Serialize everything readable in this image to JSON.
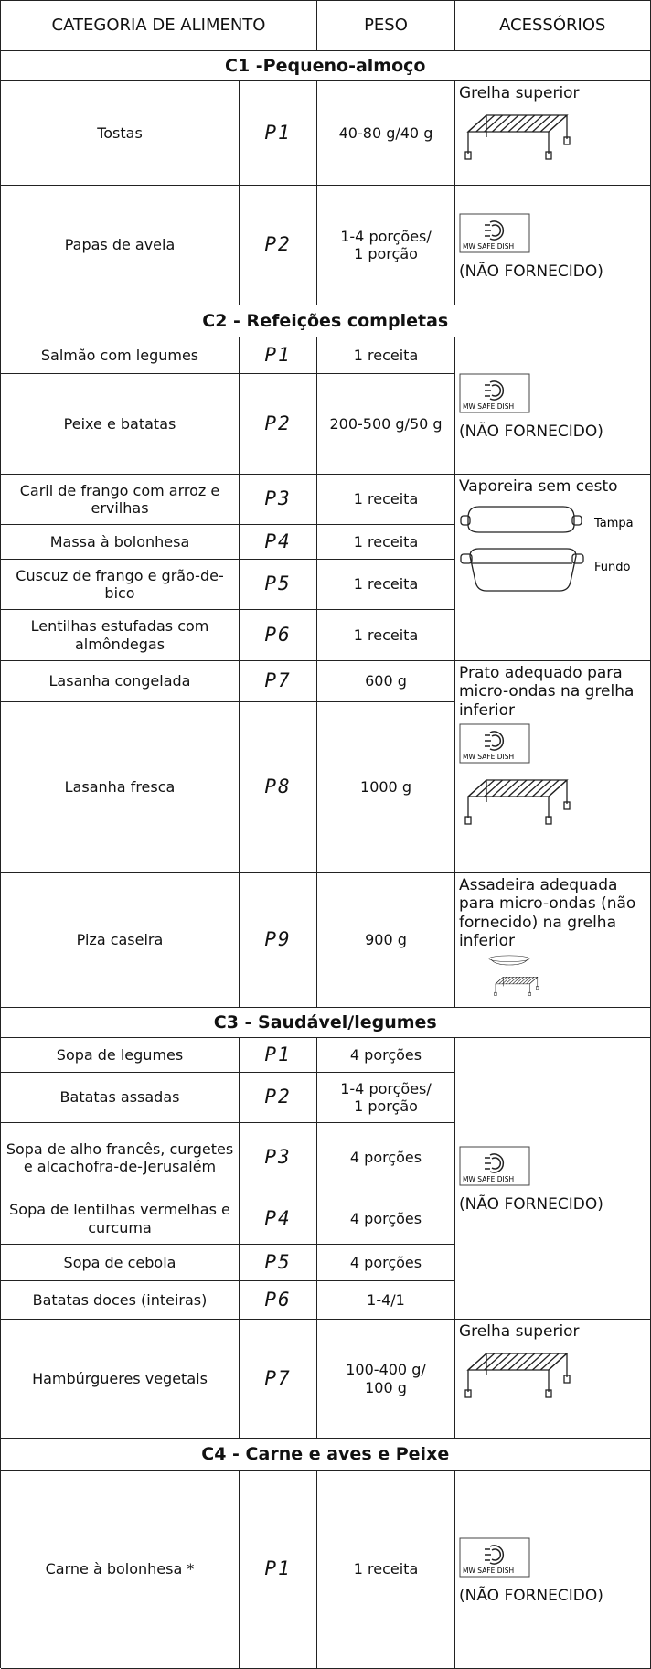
{
  "header": [
    "CATEGORIA DE ALIMENTO",
    "PESO",
    "ACESSÓRIOS"
  ],
  "sections": [
    {
      "title": "C1 -Pequeno-almoço",
      "rows": [
        {
          "food": "Tostas",
          "program": "P1",
          "weight": "40-80 g/40 g"
        },
        {
          "food": "Papas de aveia",
          "program": "P2",
          "weight": "1-4 porções/\n1 porção"
        }
      ],
      "accessories": [
        {
          "text": "Grelha superior"
        },
        {
          "icon_label": "MW SAFE DISH",
          "note": "(NÃO FORNECIDO)"
        }
      ]
    },
    {
      "title": "C2 - Refeições completas",
      "rows": [
        {
          "food": "Salmão com legumes",
          "program": "P1",
          "weight": "1 receita"
        },
        {
          "food": "Peixe e batatas",
          "program": "P2",
          "weight": "200-500 g/50 g"
        },
        {
          "food": "Caril de frango com arroz e ervilhas",
          "program": "P3",
          "weight": "1 receita"
        },
        {
          "food": "Massa à bolonhesa",
          "program": "P4",
          "weight": "1 receita"
        },
        {
          "food": "Cuscuz de frango e grão-de-bico",
          "program": "P5",
          "weight": "1 receita"
        },
        {
          "food": "Lentilhas estufadas com almôndegas",
          "program": "P6",
          "weight": "1 receita"
        },
        {
          "food": "Lasanha congelada",
          "program": "P7",
          "weight": "600 g"
        },
        {
          "food": "Lasanha fresca",
          "program": "P8",
          "weight": "1000 g"
        },
        {
          "food": "Piza caseira",
          "program": "P9",
          "weight": "900 g"
        }
      ],
      "accessories": [
        {
          "icon_label": "MW SAFE DISH",
          "note": "(NÃO FORNECIDO)"
        },
        {
          "text": "Vaporeira sem cesto",
          "lid": "Tampa",
          "base": "Fundo"
        },
        {
          "text": "Prato adequado para micro-ondas na grelha inferior",
          "icon_label": "MW SAFE DISH"
        },
        {
          "text": "Assadeira adequada para micro-ondas (não fornecido) na grelha inferior"
        }
      ]
    },
    {
      "title": "C3 - Saudável/legumes",
      "rows": [
        {
          "food": "Sopa de legumes",
          "program": "P1",
          "weight": "4 porções"
        },
        {
          "food": "Batatas assadas",
          "program": "P2",
          "weight": "1-4 porções/\n1 porção"
        },
        {
          "food": "Sopa de alho francês, curgetes e alcachofra-de-Jerusalém",
          "program": "P3",
          "weight": "4 porções"
        },
        {
          "food": "Sopa de lentilhas vermelhas e curcuma",
          "program": "P4",
          "weight": "4 porções"
        },
        {
          "food": "Sopa de cebola",
          "program": "P5",
          "weight": "4 porções"
        },
        {
          "food": "Batatas doces (inteiras)",
          "program": "P6",
          "weight": "1-4/1"
        },
        {
          "food": "Hambúrgueres vegetais",
          "program": "P7",
          "weight": "100-400 g/\n100 g"
        }
      ],
      "accessories": [
        {
          "icon_label": "MW SAFE DISH",
          "note": "(NÃO FORNECIDO)"
        },
        {
          "text": "Grelha superior"
        }
      ]
    },
    {
      "title": "C4 - Carne e aves e Peixe",
      "rows": [
        {
          "food": "Carne à bolonhesa *",
          "program": "P1",
          "weight": "1 receita"
        }
      ],
      "accessories": [
        {
          "icon_label": "MW SAFE DISH",
          "note": "(NÃO FORNECIDO)"
        }
      ]
    }
  ]
}
